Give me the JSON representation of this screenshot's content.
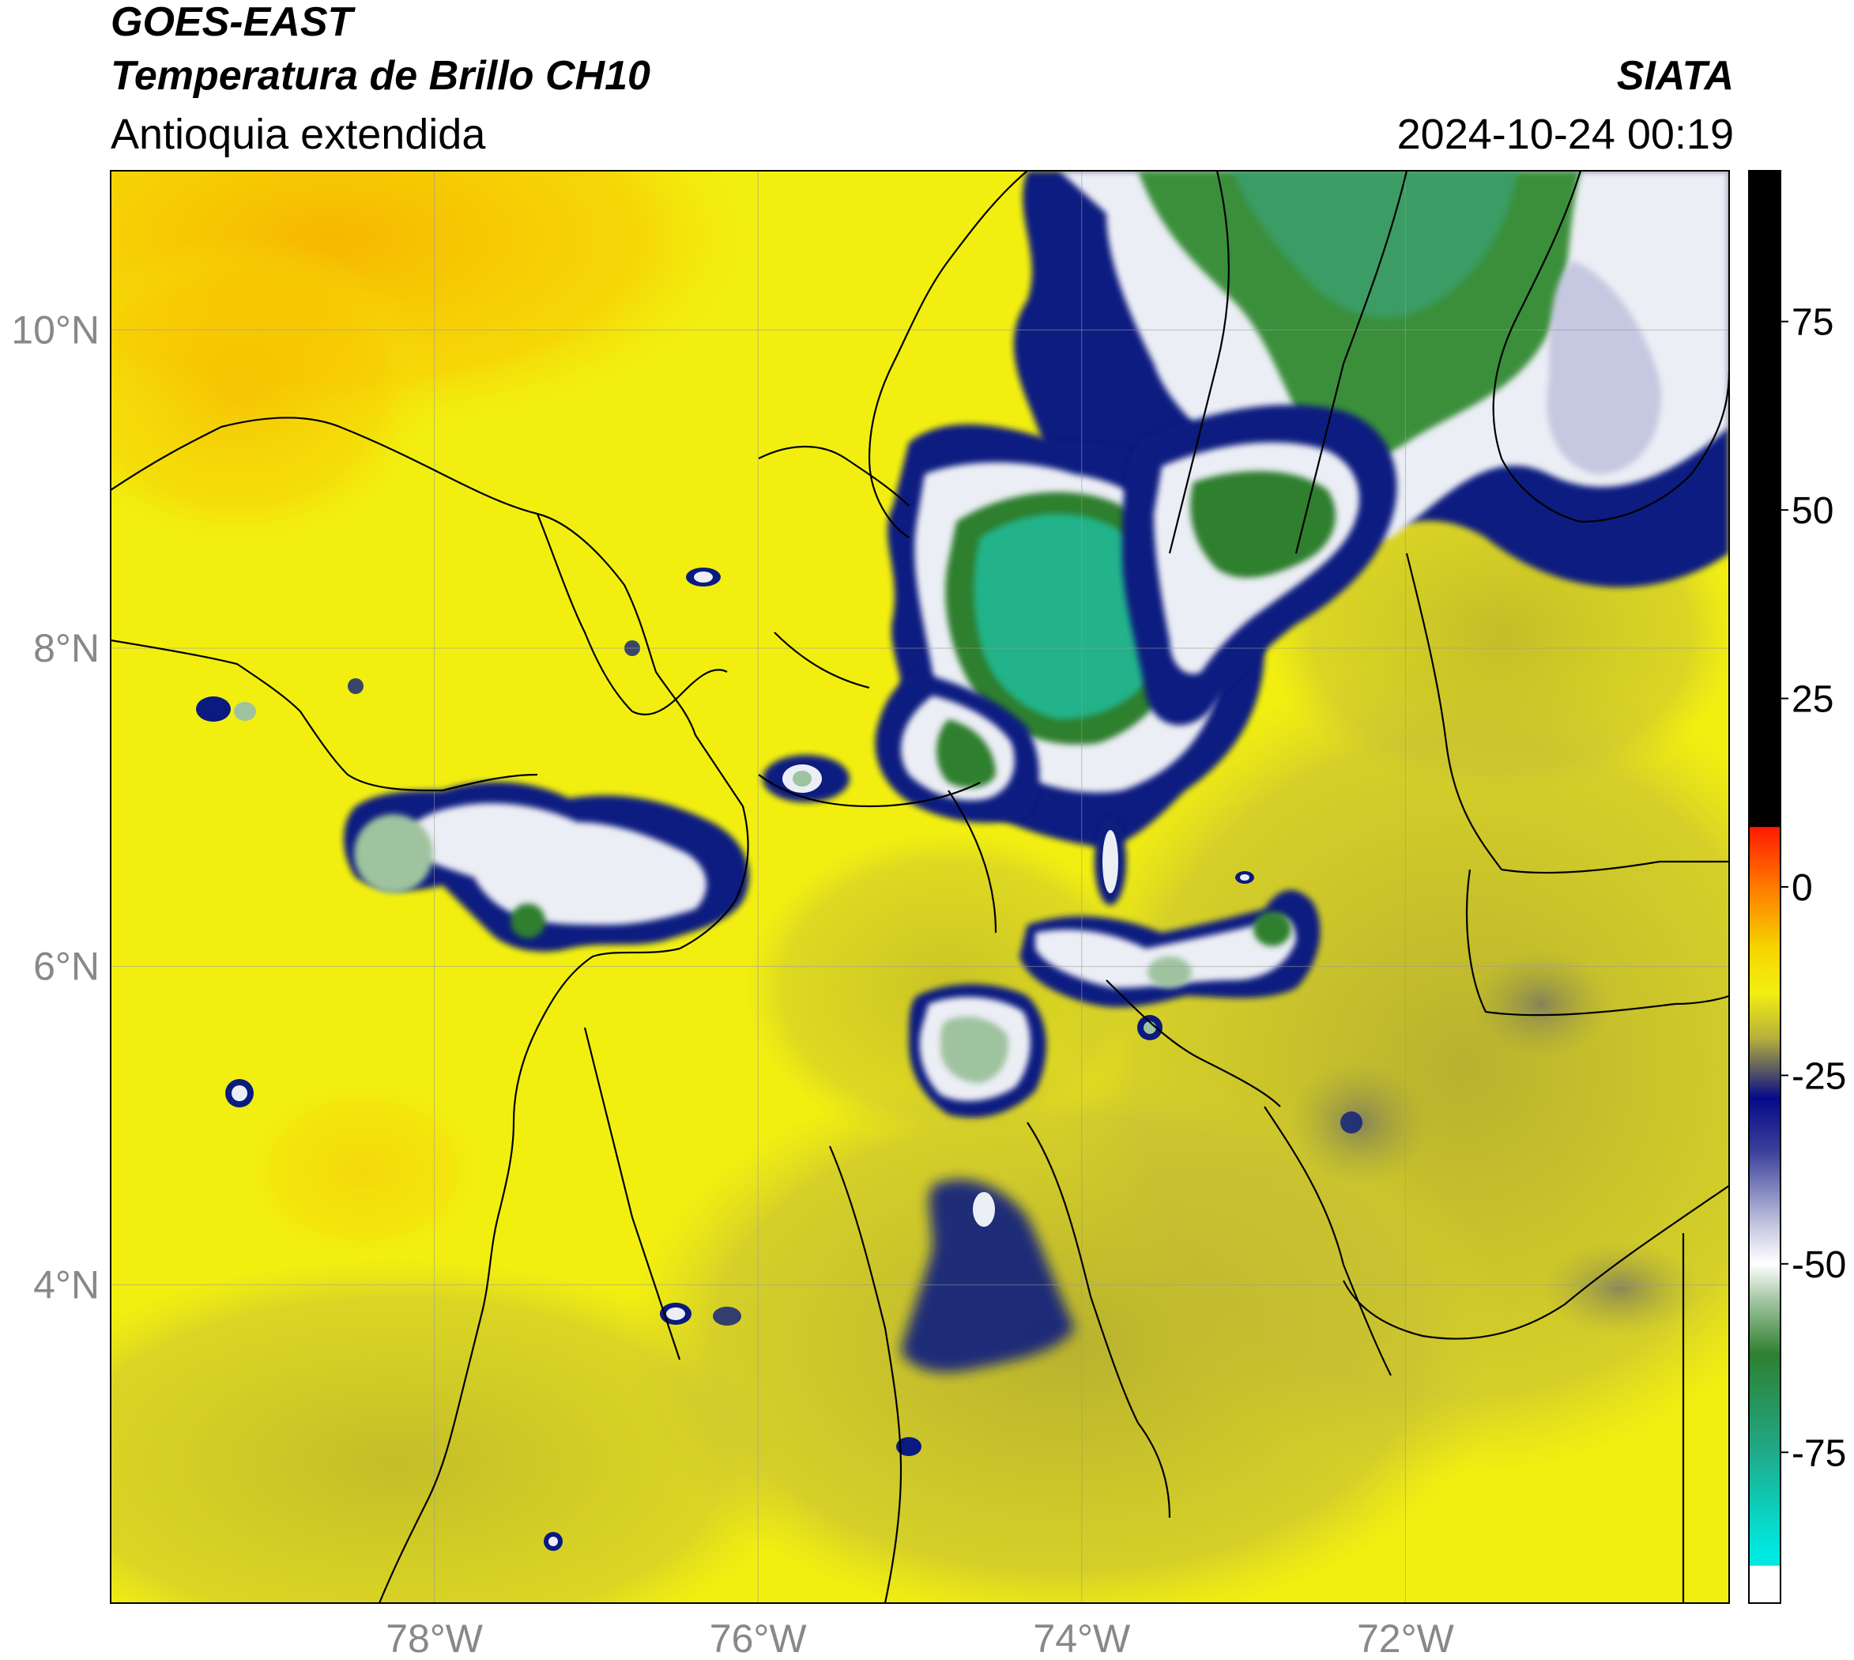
{
  "header": {
    "satellite": "GOES-EAST",
    "product": "Temperatura de Brillo CH10",
    "region": "Antioquia extendida",
    "brand": "SIATA",
    "timestamp": "2024-10-24 00:19"
  },
  "map": {
    "type": "satellite-brightness-temperature",
    "lon_range": [
      -80.0,
      -70.0
    ],
    "lat_range": [
      2.0,
      11.0
    ],
    "grid": true,
    "x_ticks": [
      {
        "value": -78,
        "label": "78°W"
      },
      {
        "value": -76,
        "label": "76°W"
      },
      {
        "value": -74,
        "label": "74°W"
      },
      {
        "value": -72,
        "label": "72°W"
      }
    ],
    "y_ticks": [
      {
        "value": 10,
        "label": "10°N"
      },
      {
        "value": 8,
        "label": "8°N"
      },
      {
        "value": 6,
        "label": "6°N"
      },
      {
        "value": 4,
        "label": "4°N"
      }
    ],
    "colors": {
      "background_yellow": "#f2ef10",
      "olive": "#c9c233",
      "orange": "#f7b800",
      "navy": "#0a1a80",
      "white_cloud": "#eceef5",
      "green": "#3a8f3a",
      "teal": "#22b38a"
    }
  },
  "colorbar": {
    "range": [
      -95,
      95
    ],
    "ticks": [
      {
        "value": 75,
        "label": "75"
      },
      {
        "value": 50,
        "label": "50"
      },
      {
        "value": 25,
        "label": "25"
      },
      {
        "value": 0,
        "label": "0"
      },
      {
        "value": -25,
        "label": "-25"
      },
      {
        "value": -50,
        "label": "-50"
      },
      {
        "value": -75,
        "label": "-75"
      }
    ],
    "stops": [
      {
        "value": 95,
        "color": "#000000"
      },
      {
        "value": 8,
        "color": "#000000"
      },
      {
        "value": 7.9,
        "color": "#ff1a00"
      },
      {
        "value": 0,
        "color": "#ff7a00"
      },
      {
        "value": -8,
        "color": "#f5d400"
      },
      {
        "value": -14,
        "color": "#f2ef10"
      },
      {
        "value": -20,
        "color": "#b8b03a"
      },
      {
        "value": -25,
        "color": "#4a4a6a"
      },
      {
        "value": -28,
        "color": "#050a8a"
      },
      {
        "value": -35,
        "color": "#3a3f9a"
      },
      {
        "value": -45,
        "color": "#c5c8e0"
      },
      {
        "value": -50,
        "color": "#ffffff"
      },
      {
        "value": -55,
        "color": "#9fc39f"
      },
      {
        "value": -62,
        "color": "#2f7f2f"
      },
      {
        "value": -75,
        "color": "#1faa8a"
      },
      {
        "value": -88,
        "color": "#00e8e0"
      },
      {
        "value": -90,
        "color": "#00e8e0"
      },
      {
        "value": -90.1,
        "color": "#ffffff"
      },
      {
        "value": -95,
        "color": "#ffffff"
      }
    ]
  }
}
